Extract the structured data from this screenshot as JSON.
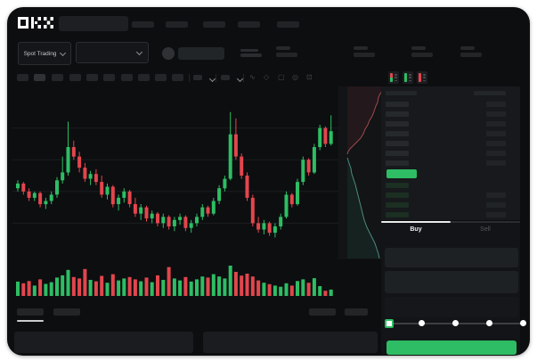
{
  "window": {
    "outer_background": "#ffffff",
    "app_background": "#0d0e10"
  },
  "brand": {
    "logo_text": "OKX"
  },
  "market_bar": {
    "pair_selector_label": "Spot Trading"
  },
  "chart_toolbar": {
    "icon_glyphs": {
      "wave": "∿",
      "draw": "◇",
      "camera": "▢",
      "settings": "◎",
      "fullscreen": "⊡"
    }
  },
  "colors": {
    "up": "#2ebd64",
    "down": "#e2464d",
    "last_price_flag": "#2ebd64",
    "buy_button": "#2ebd64",
    "depth_ask_line": "#9e4a4e",
    "depth_ask_fill": "rgba(190,70,75,0.10)",
    "depth_bid_line": "#4e8a7e",
    "depth_bid_fill": "rgba(50,170,115,0.10)",
    "grid": "#1a1d1f"
  },
  "chart_data": {
    "type": "candlestick",
    "value_scale": "relative-0-100",
    "gridlines": [
      20,
      40,
      60,
      80
    ],
    "candles": [
      [
        42,
        47,
        40,
        45
      ],
      [
        45,
        46,
        38,
        40
      ],
      [
        40,
        42,
        34,
        36
      ],
      [
        36,
        40,
        34,
        39
      ],
      [
        39,
        40,
        30,
        32
      ],
      [
        32,
        36,
        29,
        34
      ],
      [
        34,
        40,
        32,
        38
      ],
      [
        38,
        49,
        36,
        47
      ],
      [
        47,
        62,
        45,
        52
      ],
      [
        52,
        84,
        50,
        68
      ],
      [
        68,
        72,
        60,
        62
      ],
      [
        62,
        65,
        52,
        55
      ],
      [
        55,
        58,
        46,
        48
      ],
      [
        48,
        53,
        44,
        51
      ],
      [
        51,
        54,
        44,
        46
      ],
      [
        46,
        50,
        36,
        38
      ],
      [
        38,
        45,
        35,
        43
      ],
      [
        43,
        44,
        30,
        32
      ],
      [
        32,
        38,
        28,
        36
      ],
      [
        36,
        42,
        33,
        40
      ],
      [
        40,
        41,
        30,
        32
      ],
      [
        32,
        36,
        24,
        26
      ],
      [
        26,
        32,
        22,
        30
      ],
      [
        30,
        31,
        21,
        23
      ],
      [
        23,
        28,
        20,
        26
      ],
      [
        26,
        27,
        18,
        20
      ],
      [
        20,
        26,
        17,
        24
      ],
      [
        24,
        25,
        16,
        18
      ],
      [
        18,
        24,
        15,
        22
      ],
      [
        22,
        26,
        19,
        24
      ],
      [
        24,
        25,
        15,
        17
      ],
      [
        17,
        22,
        14,
        20
      ],
      [
        20,
        26,
        18,
        24
      ],
      [
        24,
        32,
        22,
        30
      ],
      [
        30,
        31,
        24,
        26
      ],
      [
        26,
        36,
        25,
        34
      ],
      [
        34,
        44,
        32,
        42
      ],
      [
        42,
        50,
        40,
        48
      ],
      [
        48,
        90,
        47,
        76
      ],
      [
        76,
        86,
        60,
        62
      ],
      [
        62,
        64,
        48,
        50
      ],
      [
        50,
        52,
        34,
        36
      ],
      [
        36,
        38,
        18,
        20
      ],
      [
        20,
        24,
        14,
        16
      ],
      [
        16,
        22,
        13,
        20
      ],
      [
        20,
        21,
        12,
        14
      ],
      [
        14,
        20,
        11,
        18
      ],
      [
        18,
        26,
        16,
        24
      ],
      [
        24,
        40,
        23,
        38
      ],
      [
        38,
        39,
        30,
        32
      ],
      [
        32,
        48,
        31,
        46
      ],
      [
        46,
        62,
        44,
        60
      ],
      [
        60,
        61,
        50,
        52
      ],
      [
        52,
        70,
        51,
        68
      ],
      [
        68,
        82,
        66,
        80
      ],
      [
        80,
        81,
        68,
        70
      ],
      [
        70,
        88,
        69,
        78
      ]
    ],
    "volume": [
      44,
      38,
      46,
      30,
      52,
      36,
      42,
      58,
      66,
      85,
      60,
      55,
      88,
      50,
      45,
      64,
      40,
      70,
      48,
      55,
      60,
      52,
      45,
      58,
      42,
      66,
      50,
      95,
      55,
      48,
      60,
      44,
      52,
      62,
      58,
      70,
      62,
      55,
      100,
      78,
      65,
      72,
      62,
      48,
      40,
      35,
      30,
      26,
      38,
      30,
      46,
      52,
      40,
      56,
      28,
      12,
      16
    ],
    "depth": {
      "ask_line": [
        [
          50,
          4
        ],
        [
          47,
          8
        ],
        [
          45,
          12
        ],
        [
          44,
          18
        ],
        [
          42,
          22
        ],
        [
          40,
          28
        ],
        [
          38,
          33
        ],
        [
          35,
          38
        ],
        [
          33,
          43
        ],
        [
          30,
          48
        ],
        [
          28,
          53
        ],
        [
          25,
          58
        ],
        [
          21,
          62
        ],
        [
          17,
          66
        ],
        [
          13,
          70
        ],
        [
          11,
          73
        ],
        [
          10,
          76
        ]
      ],
      "bid_line": [
        [
          10,
          80
        ],
        [
          12,
          86
        ],
        [
          14,
          92
        ],
        [
          15,
          98
        ],
        [
          17,
          104
        ],
        [
          19,
          110
        ],
        [
          21,
          118
        ],
        [
          23,
          126
        ],
        [
          25,
          134
        ],
        [
          27,
          142
        ],
        [
          29,
          150
        ],
        [
          32,
          158
        ],
        [
          35,
          164
        ],
        [
          38,
          170
        ],
        [
          41,
          176
        ],
        [
          43,
          182
        ],
        [
          45,
          188
        ],
        [
          46,
          193
        ]
      ]
    }
  },
  "order_book": {
    "view_toggles": [
      "combined-view",
      "bids-view",
      "asks-view"
    ],
    "ask_rows": 7,
    "bid_rows": 4,
    "bid_amount_bars": [
      false,
      true,
      true,
      true
    ],
    "last_price_direction": "up"
  },
  "trade_panel": {
    "buy_tab": "Buy",
    "sell_tab": "Sell",
    "active_tab": "Buy",
    "slider_stops": 5,
    "slider_active_stop": 0,
    "submit_label": ""
  }
}
